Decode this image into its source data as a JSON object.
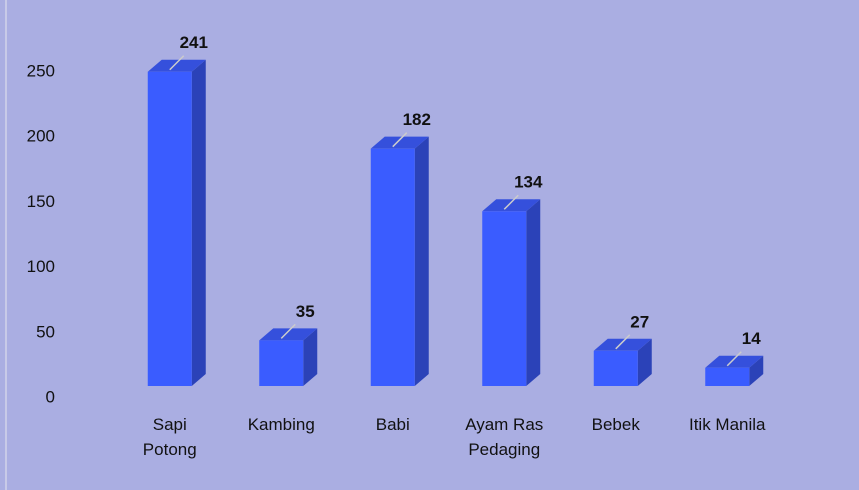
{
  "chart_data": {
    "type": "bar3d",
    "categories": [
      "Sapi\nPotong",
      "Kambing",
      "Babi",
      "Ayam Ras\nPedaging",
      "Bebek",
      "Itik Manila"
    ],
    "values": [
      241,
      35,
      182,
      134,
      27,
      14
    ],
    "color": "#3a5cff",
    "ylim": [
      0,
      250
    ],
    "yticks": [
      0,
      50,
      100,
      150,
      200,
      250
    ],
    "grid": false
  }
}
